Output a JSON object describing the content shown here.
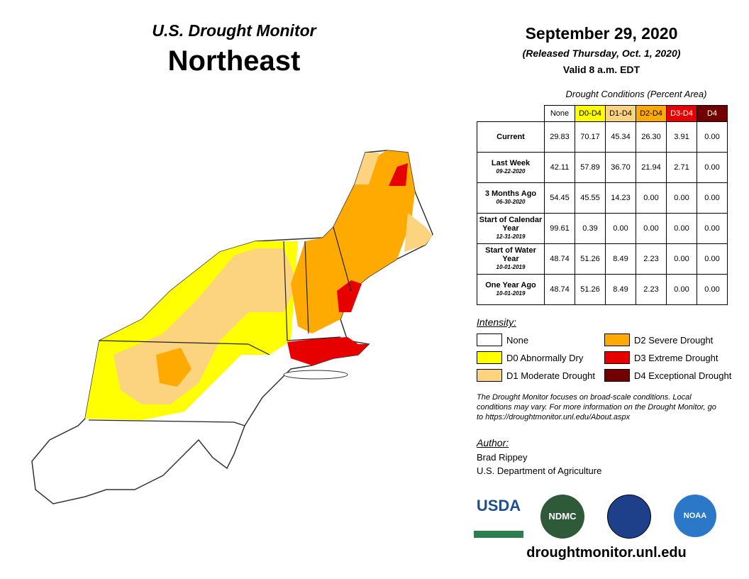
{
  "header": {
    "title": "U.S. Drought Monitor",
    "region": "Northeast",
    "date": "September 29, 2020",
    "released": "(Released Thursday, Oct. 1, 2020)",
    "valid": "Valid 8 a.m. EDT"
  },
  "table": {
    "caption": "Drought Conditions (Percent Area)",
    "columns": [
      {
        "label": "None",
        "color": "#ffffff",
        "text": "#000000"
      },
      {
        "label": "D0-D4",
        "color": "#ffff00",
        "text": "#000000"
      },
      {
        "label": "D1-D4",
        "color": "#fcd37f",
        "text": "#000000"
      },
      {
        "label": "D2-D4",
        "color": "#ffaa00",
        "text": "#000000"
      },
      {
        "label": "D3-D4",
        "color": "#e60000",
        "text": "#ffffff"
      },
      {
        "label": "D4",
        "color": "#730000",
        "text": "#ffffff"
      }
    ],
    "rows": [
      {
        "label": "Current",
        "values": [
          "29.83",
          "70.17",
          "45.34",
          "26.30",
          "3.91",
          "0.00"
        ]
      },
      {
        "label": "Last Week",
        "date": "09-22-2020",
        "values": [
          "42.11",
          "57.89",
          "36.70",
          "21.94",
          "2.71",
          "0.00"
        ]
      },
      {
        "label": "3 Months Ago",
        "date": "06-30-2020",
        "values": [
          "54.45",
          "45.55",
          "14.23",
          "0.00",
          "0.00",
          "0.00"
        ]
      },
      {
        "label": "Start of Calendar Year",
        "date": "12-31-2019",
        "values": [
          "99.61",
          "0.39",
          "0.00",
          "0.00",
          "0.00",
          "0.00"
        ]
      },
      {
        "label": "Start of Water Year",
        "date": "10-01-2019",
        "values": [
          "48.74",
          "51.26",
          "8.49",
          "2.23",
          "0.00",
          "0.00"
        ]
      },
      {
        "label": "One Year Ago",
        "date": "10-01-2019",
        "values": [
          "48.74",
          "51.26",
          "8.49",
          "2.23",
          "0.00",
          "0.00"
        ]
      }
    ]
  },
  "legend": {
    "title": "Intensity:",
    "items": [
      {
        "label": "None",
        "color": "#ffffff"
      },
      {
        "label": "D0 Abnormally Dry",
        "color": "#ffff00"
      },
      {
        "label": "D1 Moderate Drought",
        "color": "#fcd37f"
      },
      {
        "label": "D2 Severe Drought",
        "color": "#ffaa00"
      },
      {
        "label": "D3 Extreme Drought",
        "color": "#e60000"
      },
      {
        "label": "D4 Exceptional Drought",
        "color": "#730000"
      }
    ]
  },
  "note": "The Drought Monitor focuses on broad-scale conditions. Local conditions may vary. For more information on the Drought Monitor, go to https://droughtmonitor.unl.edu/About.aspx",
  "author": {
    "title": "Author:",
    "name": "Brad Rippey",
    "org": "U.S. Department of Agriculture"
  },
  "logos": [
    "USDA",
    "NDMC",
    "NOAA"
  ],
  "url": "droughtmonitor.unl.edu"
}
